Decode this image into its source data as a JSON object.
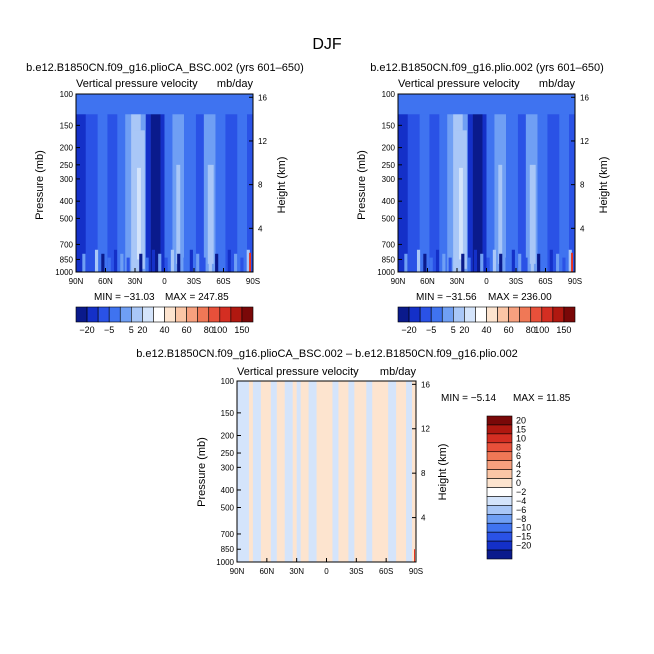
{
  "figure": {
    "title": "DJF",
    "colors": {
      "deepest_blue": "#0a1a8c",
      "dark_blue": "#1430c8",
      "mid_blue": "#2a52e6",
      "blue": "#3f73f0",
      "light_blue": "#6f9ff4",
      "pale_blue": "#a9c7f7",
      "paler_blue": "#d4e4fb",
      "beige": "#fde4cf",
      "red": "#e8321e"
    }
  },
  "chart_data": [
    {
      "type": "heatmap",
      "name": "panel-left",
      "case_title": "b.e12.B1850CN.f09_g16.plioCA_BSC.002 (yrs 601–650)",
      "variable": "Vertical pressure velocity",
      "units": "mb/day",
      "ylabel": "Pressure (mb)",
      "y2label": "Height (km)",
      "x_ticks": [
        "90N",
        "60N",
        "30N",
        "0",
        "30S",
        "60S",
        "90S"
      ],
      "x_range": [
        90,
        -90
      ],
      "y_ticks": [
        "100",
        "150",
        "200",
        "250",
        "300",
        "400",
        "500",
        "700",
        "850",
        "1000"
      ],
      "y_tick_values": [
        100,
        150,
        200,
        250,
        300,
        400,
        500,
        700,
        850,
        1000
      ],
      "y_range": [
        100,
        1000
      ],
      "y2_ticks": [
        "4",
        "8",
        "12",
        "16"
      ],
      "y2_tick_values": [
        4,
        8,
        12,
        16
      ],
      "min_label": "MIN = −31.03",
      "max_label": "MAX = 247.85",
      "min": -31.03,
      "max": 247.85,
      "colorbar_labels": [
        "−20",
        "−5",
        "5",
        "20",
        "40",
        "60",
        "80",
        "100",
        "150"
      ],
      "colorbar_colors": [
        "#0a1a8c",
        "#1430c8",
        "#2a52e6",
        "#3f73f0",
        "#6f9ff4",
        "#a9c7f7",
        "#d4e4fb",
        "#ffffff",
        "#fde4cf",
        "#fbc6a6",
        "#f7a07e",
        "#f07856",
        "#e8503a",
        "#d42e22",
        "#b01810",
        "#7a0808"
      ]
    },
    {
      "type": "heatmap",
      "name": "panel-right",
      "case_title": "b.e12.B1850CN.f09_g16.plio.002 (yrs 601–650)",
      "variable": "Vertical pressure velocity",
      "units": "mb/day",
      "ylabel": "Pressure (mb)",
      "y2label": "Height (km)",
      "x_ticks": [
        "90N",
        "60N",
        "30N",
        "0",
        "30S",
        "60S",
        "90S"
      ],
      "x_range": [
        90,
        -90
      ],
      "y_ticks": [
        "100",
        "150",
        "200",
        "250",
        "300",
        "400",
        "500",
        "700",
        "850",
        "1000"
      ],
      "y_tick_values": [
        100,
        150,
        200,
        250,
        300,
        400,
        500,
        700,
        850,
        1000
      ],
      "y_range": [
        100,
        1000
      ],
      "y2_ticks": [
        "4",
        "8",
        "12",
        "16"
      ],
      "y2_tick_values": [
        4,
        8,
        12,
        16
      ],
      "min_label": "MIN = −31.56",
      "max_label": "MAX = 236.00",
      "min": -31.56,
      "max": 236.0,
      "colorbar_labels": [
        "−20",
        "−5",
        "5",
        "20",
        "40",
        "60",
        "80",
        "100",
        "150"
      ],
      "colorbar_colors": [
        "#0a1a8c",
        "#1430c8",
        "#2a52e6",
        "#3f73f0",
        "#6f9ff4",
        "#a9c7f7",
        "#d4e4fb",
        "#ffffff",
        "#fde4cf",
        "#fbc6a6",
        "#f7a07e",
        "#f07856",
        "#e8503a",
        "#d42e22",
        "#b01810",
        "#7a0808"
      ]
    },
    {
      "type": "heatmap",
      "name": "panel-diff",
      "case_title": "b.e12.B1850CN.f09_g16.plioCA_BSC.002 – b.e12.B1850CN.f09_g16.plio.002",
      "variable": "Vertical pressure velocity",
      "units": "mb/day",
      "ylabel": "Pressure (mb)",
      "y2label": "Height (km)",
      "x_ticks": [
        "90N",
        "60N",
        "30N",
        "0",
        "30S",
        "60S",
        "90S"
      ],
      "x_range": [
        90,
        -90
      ],
      "y_ticks": [
        "100",
        "150",
        "200",
        "250",
        "300",
        "400",
        "500",
        "700",
        "850",
        "1000"
      ],
      "y_tick_values": [
        100,
        150,
        200,
        250,
        300,
        400,
        500,
        700,
        850,
        1000
      ],
      "y_range": [
        100,
        1000
      ],
      "y2_ticks": [
        "4",
        "8",
        "12",
        "16"
      ],
      "y2_tick_values": [
        4,
        8,
        12,
        16
      ],
      "min_label": "MIN = −5.14",
      "max_label": "MAX = 11.85",
      "min": -5.14,
      "max": 11.85,
      "colorbar_labels": [
        "20",
        "15",
        "10",
        "8",
        "6",
        "4",
        "2",
        "0",
        "−2",
        "−4",
        "−6",
        "−8",
        "−10",
        "−15",
        "−20"
      ],
      "colorbar_colors": [
        "#7a0808",
        "#b01810",
        "#d42e22",
        "#e8503a",
        "#f07856",
        "#f7a07e",
        "#fbc6a6",
        "#fde4cf",
        "#ffffff",
        "#d4e4fb",
        "#a9c7f7",
        "#6f9ff4",
        "#3f73f0",
        "#2a52e6",
        "#1430c8",
        "#0a1a8c"
      ]
    }
  ]
}
